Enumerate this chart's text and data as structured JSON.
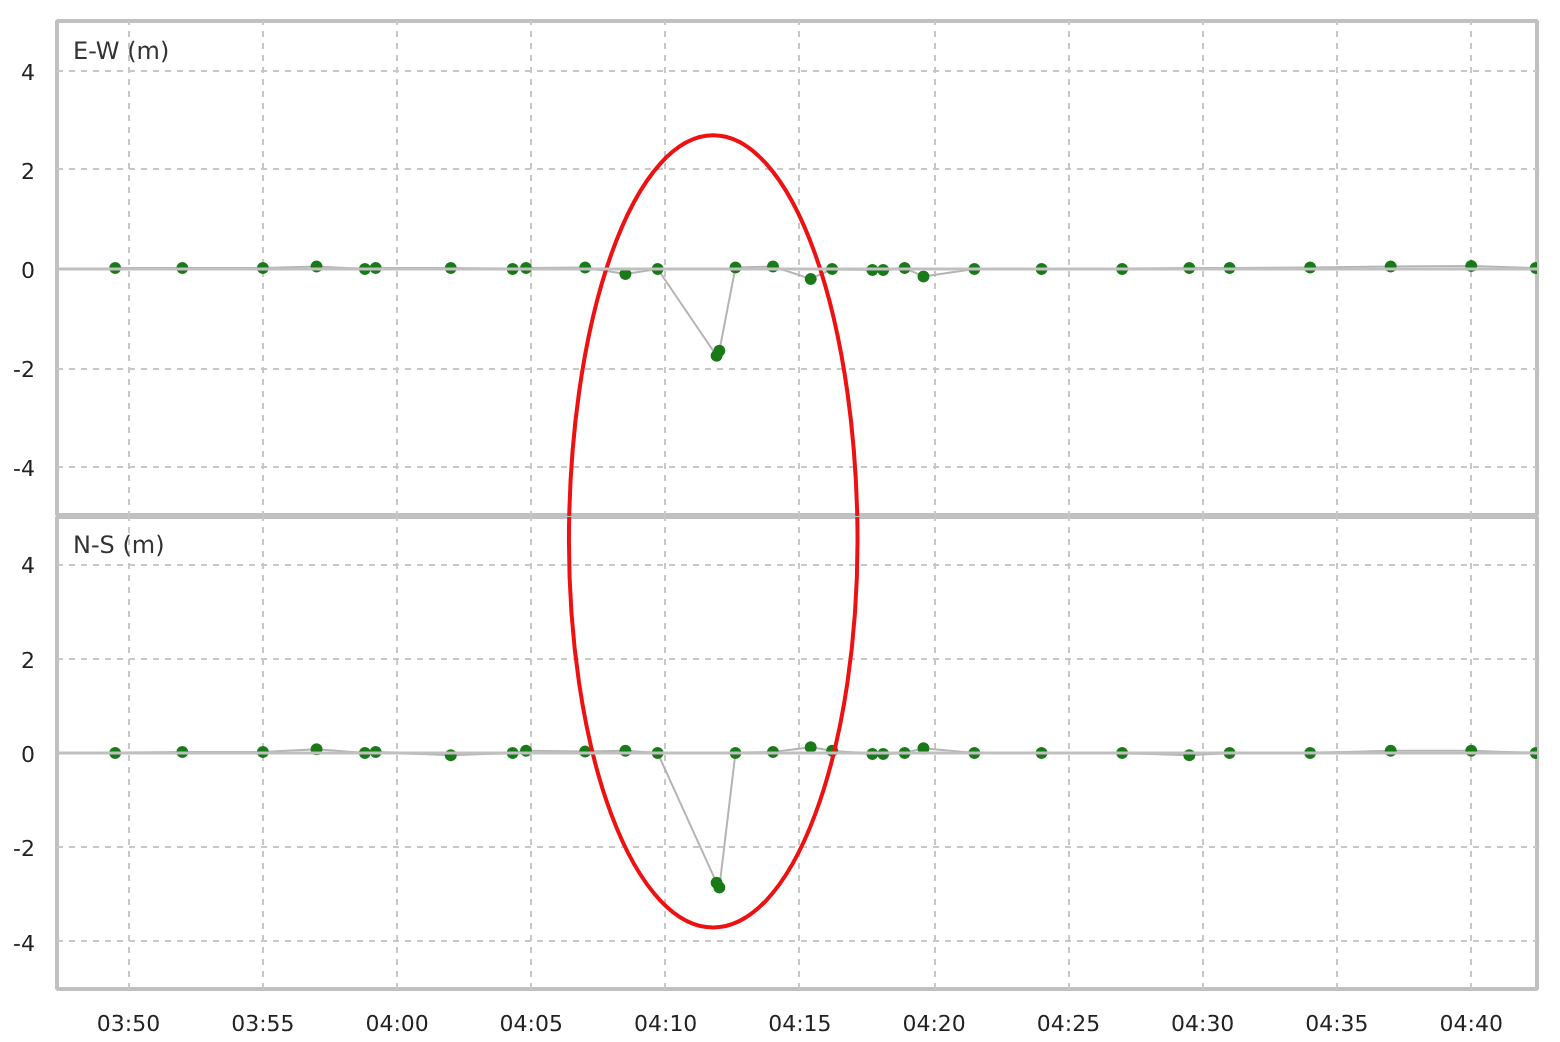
{
  "chart_data": [
    {
      "type": "line",
      "title": "E-W (m)",
      "xlim": [
        3.7889,
        4.7075
      ],
      "ylim": [
        -5,
        5
      ],
      "yticks": [
        -4,
        -2,
        0,
        2,
        4
      ],
      "tick_labels": "y",
      "grid": true,
      "xticks": [
        {
          "value": 3.8333,
          "label": null
        },
        {
          "value": 3.9167,
          "label": null
        },
        {
          "value": 4.0,
          "label": null
        },
        {
          "value": 4.0833,
          "label": null
        },
        {
          "value": 4.1667,
          "label": null
        },
        {
          "value": 4.25,
          "label": null
        },
        {
          "value": 4.3333,
          "label": null
        },
        {
          "value": 4.4167,
          "label": null
        },
        {
          "value": 4.5,
          "label": null
        },
        {
          "value": 4.5833,
          "label": null
        },
        {
          "value": 4.6667,
          "label": null
        }
      ],
      "ref_lines": [
        {
          "axis": "y",
          "value": 0,
          "color": "#c0c0c0"
        }
      ],
      "series": [
        {
          "color": "#b4b4b4",
          "x": [
            3.825,
            3.8667,
            3.9167,
            3.95,
            3.98,
            3.9867,
            4.0333,
            4.0717,
            4.08,
            4.1167,
            4.1417,
            4.1617,
            4.1983,
            4.2,
            4.21,
            4.2333,
            4.2567,
            4.27,
            4.295,
            4.3017,
            4.315,
            4.3267,
            4.3583,
            4.4,
            4.45,
            4.4917,
            4.5167,
            4.5667,
            4.6167,
            4.6667,
            4.7067
          ],
          "values": [
            0.02,
            0.02,
            0.02,
            0.05,
            0.0,
            0.02,
            0.02,
            0.0,
            0.02,
            0.03,
            -0.1,
            0.0,
            -1.75,
            -1.65,
            0.03,
            0.05,
            -0.2,
            0.0,
            -0.02,
            -0.02,
            0.02,
            -0.15,
            0.0,
            0.0,
            0.0,
            0.02,
            0.02,
            0.03,
            0.05,
            0.06,
            0.02
          ]
        },
        {
          "type": "scatter",
          "color": "#1a7a1a",
          "x": [
            3.825,
            3.8667,
            3.9167,
            3.95,
            3.98,
            3.9833,
            3.9867,
            4.0333,
            4.0717,
            4.0758,
            4.08,
            4.1167,
            4.1417,
            4.1617,
            4.18,
            4.1983,
            4.2,
            4.205,
            4.21,
            4.2333,
            4.2567,
            4.27,
            4.2825,
            4.295,
            4.3017,
            4.3083,
            4.315,
            4.3267,
            4.3425,
            4.3583,
            4.4,
            4.45,
            4.4917,
            4.5042,
            4.5167,
            4.5667,
            4.6167,
            4.6667,
            4.7067
          ],
          "values": [
            0.02,
            0.02,
            0.02,
            0.05,
            0.0,
            null,
            0.02,
            0.02,
            0.0,
            null,
            0.02,
            0.03,
            -0.1,
            0.0,
            null,
            -1.75,
            -1.65,
            null,
            0.03,
            0.05,
            -0.2,
            0.0,
            null,
            -0.02,
            -0.02,
            null,
            0.02,
            -0.15,
            null,
            0.0,
            0.0,
            0.0,
            0.02,
            null,
            0.02,
            0.03,
            0.05,
            0.06,
            0.02
          ]
        }
      ]
    },
    {
      "type": "line",
      "title": "N-S (m)",
      "xlim": [
        3.7889,
        4.7075
      ],
      "ylim": [
        -5,
        5
      ],
      "yticks": [
        -4,
        -2,
        0,
        2,
        4
      ],
      "grid": true,
      "xticks": [
        {
          "value": 3.8333,
          "label": "03:50"
        },
        {
          "value": 3.9167,
          "label": "03:55"
        },
        {
          "value": 4.0,
          "label": "04:00"
        },
        {
          "value": 4.0833,
          "label": "04:05"
        },
        {
          "value": 4.1667,
          "label": "04:10"
        },
        {
          "value": 4.25,
          "label": "04:15"
        },
        {
          "value": 4.3333,
          "label": "04:20"
        },
        {
          "value": 4.4167,
          "label": "04:25"
        },
        {
          "value": 4.5,
          "label": "04:30"
        },
        {
          "value": 4.5833,
          "label": "04:35"
        },
        {
          "value": 4.6667,
          "label": "04:40"
        }
      ],
      "ref_lines": [
        {
          "axis": "y",
          "value": 0,
          "color": "#c0c0c0"
        }
      ],
      "series": [
        {
          "color": "#b4b4b4",
          "x": [
            3.825,
            3.8667,
            3.9167,
            3.95,
            3.98,
            3.9867,
            4.0333,
            4.0717,
            4.08,
            4.1167,
            4.1417,
            4.1617,
            4.1983,
            4.2,
            4.21,
            4.2333,
            4.2567,
            4.27,
            4.295,
            4.3017,
            4.315,
            4.3267,
            4.3583,
            4.4,
            4.45,
            4.4917,
            4.5167,
            4.5667,
            4.6167,
            4.6667,
            4.7067
          ],
          "values": [
            0.0,
            0.02,
            0.02,
            0.08,
            0.0,
            0.02,
            -0.05,
            0.0,
            0.05,
            0.03,
            0.05,
            0.0,
            -2.75,
            -2.85,
            0.0,
            0.02,
            0.12,
            0.05,
            -0.02,
            -0.02,
            0.0,
            0.1,
            0.0,
            0.0,
            0.0,
            -0.05,
            0.0,
            0.0,
            0.05,
            0.05,
            0.0
          ]
        },
        {
          "type": "scatter",
          "color": "#1a7a1a",
          "x": [
            3.825,
            3.8667,
            3.9167,
            3.95,
            3.98,
            3.9833,
            3.9867,
            4.0333,
            4.0717,
            4.0758,
            4.08,
            4.1167,
            4.1417,
            4.1617,
            4.18,
            4.1983,
            4.2,
            4.205,
            4.21,
            4.2333,
            4.2567,
            4.27,
            4.2825,
            4.295,
            4.3017,
            4.3083,
            4.315,
            4.3267,
            4.3425,
            4.3583,
            4.4,
            4.45,
            4.4917,
            4.5042,
            4.5167,
            4.5667,
            4.6167,
            4.6667,
            4.7067
          ],
          "values": [
            0.0,
            0.02,
            0.02,
            0.08,
            0.0,
            null,
            0.02,
            -0.05,
            0.0,
            null,
            0.05,
            0.03,
            0.05,
            0.0,
            null,
            -2.75,
            -2.85,
            null,
            0.0,
            0.02,
            0.12,
            0.05,
            null,
            -0.02,
            -0.02,
            null,
            0.0,
            0.1,
            null,
            0.0,
            0.0,
            0.0,
            -0.05,
            null,
            0.0,
            0.0,
            0.05,
            0.05,
            0.0
          ]
        }
      ]
    }
  ]
}
